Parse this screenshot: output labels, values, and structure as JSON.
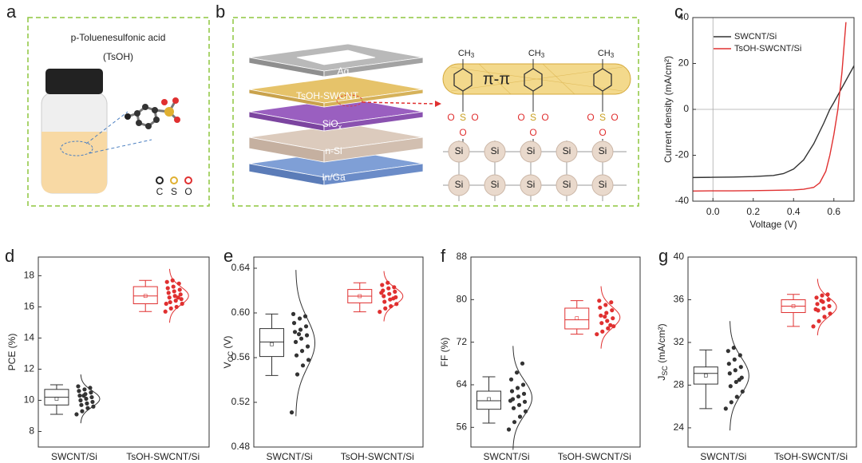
{
  "panel_labels": [
    "a",
    "b",
    "c",
    "d",
    "e",
    "f",
    "g"
  ],
  "diagram_a": {
    "title": "p-Toluenesulfonic acid",
    "subtitle": "(TsOH)",
    "legend": [
      "C",
      "S",
      "O"
    ]
  },
  "diagram_b": {
    "layers": [
      "Ag",
      "TsOH-SWCNT",
      {
        "text": "SiO",
        "sub": "x"
      },
      "n-Si",
      "In/Ga"
    ],
    "interaction": "π-π",
    "methyl": [
      {
        "text": "CH",
        "sub": "3"
      },
      {
        "text": "CH",
        "sub": "3"
      },
      {
        "text": "CH",
        "sub": "3"
      }
    ],
    "sulfonyl": [
      {
        "S": "S",
        "O": [
          "O",
          "O",
          "O"
        ]
      },
      {
        "S": "S",
        "O": [
          "O",
          "O",
          "O"
        ]
      },
      {
        "S": "S",
        "O": [
          "O",
          "O",
          "O"
        ]
      }
    ],
    "si_atoms": [
      "Si",
      "Si",
      "Si",
      "Si",
      "Si",
      "Si",
      "Si",
      "Si",
      "Si",
      "Si"
    ]
  },
  "chart_data": [
    {
      "type": "line",
      "x_label": "Voltage (V)",
      "y_label": "Current density (mA/cm²)",
      "xlim": [
        -0.1,
        0.7
      ],
      "ylim": [
        -40,
        40
      ],
      "xticks": [
        {
          "value": 0,
          "label": "0.0"
        },
        {
          "value": 0.2,
          "label": "0.2"
        },
        {
          "value": 0.4,
          "label": "0.4"
        },
        {
          "value": 0.6,
          "label": "0.6"
        }
      ],
      "yticks": [
        -40,
        -20,
        0,
        20,
        40
      ],
      "zero_lines": true,
      "legend": "upper left",
      "series": [
        {
          "name": "SWCNT/Si",
          "color": "#333333",
          "x": [
            -0.1,
            0,
            0.1,
            0.2,
            0.3,
            0.35,
            0.4,
            0.45,
            0.5,
            0.55,
            0.58,
            0.6,
            0.65,
            0.7
          ],
          "values": [
            -29.7,
            -29.6,
            -29.5,
            -29.3,
            -28.8,
            -28,
            -26,
            -22,
            -15,
            -6,
            0,
            3,
            11,
            19
          ]
        },
        {
          "name": "TsOH-SWCNT/Si",
          "color": "#e03030",
          "x": [
            -0.1,
            0,
            0.1,
            0.2,
            0.3,
            0.4,
            0.45,
            0.5,
            0.53,
            0.56,
            0.58,
            0.6,
            0.62,
            0.64,
            0.66
          ],
          "values": [
            -35.6,
            -35.5,
            -35.5,
            -35.4,
            -35.3,
            -35.1,
            -34.8,
            -34,
            -32,
            -27,
            -20,
            -11,
            0,
            16,
            38
          ]
        }
      ]
    },
    {
      "type": "box",
      "y_label": "PCE (%)",
      "categories": [
        "SWCNT/Si",
        "TsOH-SWCNT/Si"
      ],
      "ylim": [
        7,
        19.2
      ],
      "yticks": [
        8,
        10,
        12,
        14,
        16,
        18
      ],
      "series": [
        {
          "color": "#333333",
          "box": {
            "min": 9.1,
            "q1": 9.7,
            "median": 10.2,
            "q3": 10.7,
            "max": 11.0,
            "mean": 10.1
          },
          "points": [
            9.1,
            9.3,
            9.5,
            9.6,
            9.7,
            9.8,
            9.9,
            10.0,
            10.1,
            10.2,
            10.3,
            10.4,
            10.5,
            10.6,
            10.7,
            10.8,
            10.9,
            10.3
          ]
        },
        {
          "color": "#e03030",
          "box": {
            "min": 15.7,
            "q1": 16.2,
            "median": 16.7,
            "q3": 17.3,
            "max": 17.7,
            "mean": 16.7
          },
          "points": [
            15.7,
            15.9,
            16.0,
            16.2,
            16.3,
            16.4,
            16.5,
            16.6,
            16.7,
            16.8,
            16.9,
            17.0,
            17.1,
            17.2,
            17.3,
            17.5,
            17.6,
            17.7,
            16.6,
            16.2
          ]
        }
      ]
    },
    {
      "type": "box",
      "y_label": {
        "text": "V",
        "sub": "OC",
        "rest": " (V)"
      },
      "categories": [
        "SWCNT/Si",
        "TsOH-SWCNT/Si"
      ],
      "ylim": [
        0.48,
        0.65
      ],
      "yticks": [
        0.48,
        0.52,
        0.56,
        {
          "value": 0.6,
          "label": "0.60"
        },
        0.64
      ],
      "series": [
        {
          "color": "#333333",
          "box": {
            "min": 0.544,
            "q1": 0.561,
            "median": 0.574,
            "q3": 0.586,
            "max": 0.599,
            "mean": 0.572
          },
          "points": [
            0.511,
            0.545,
            0.553,
            0.558,
            0.562,
            0.566,
            0.57,
            0.574,
            0.577,
            0.58,
            0.583,
            0.585,
            0.588,
            0.591,
            0.595,
            0.597,
            0.599,
            0.581
          ]
        },
        {
          "color": "#e03030",
          "box": {
            "min": 0.601,
            "q1": 0.609,
            "median": 0.615,
            "q3": 0.621,
            "max": 0.627,
            "mean": 0.615
          },
          "points": [
            0.601,
            0.604,
            0.606,
            0.608,
            0.61,
            0.612,
            0.614,
            0.615,
            0.617,
            0.619,
            0.62,
            0.622,
            0.623,
            0.625,
            0.627,
            0.613,
            0.618
          ]
        }
      ]
    },
    {
      "type": "box",
      "y_label": "FF (%)",
      "categories": [
        "SWCNT/Si",
        "TsOH-SWCNT/Si"
      ],
      "ylim": [
        52.3,
        88
      ],
      "yticks": [
        56,
        64,
        72,
        80,
        88
      ],
      "series": [
        {
          "color": "#333333",
          "box": {
            "min": 56.8,
            "q1": 59.4,
            "median": 61,
            "q3": 62.8,
            "max": 65.5,
            "mean": 61.3
          },
          "points": [
            55.6,
            57.0,
            58.0,
            59.0,
            59.6,
            60.2,
            60.8,
            61.3,
            61.8,
            62.3,
            62.8,
            63.4,
            64.0,
            65.0,
            66.3,
            68.0,
            61.0
          ]
        },
        {
          "color": "#e03030",
          "box": {
            "min": 73.5,
            "q1": 74.5,
            "median": 76.2,
            "q3": 78.4,
            "max": 79.8,
            "mean": 76.5
          },
          "points": [
            73.5,
            74.0,
            74.6,
            75.0,
            75.6,
            76.0,
            76.5,
            77.0,
            77.5,
            78.0,
            78.5,
            79.0,
            79.5,
            79.8,
            76.8,
            75.2
          ]
        }
      ]
    },
    {
      "type": "box",
      "y_label": {
        "text": "J",
        "sub": "SC",
        "rest": " (mA/cm²)"
      },
      "categories": [
        "SWCNT/Si",
        "TsOH-SWCNT/Si"
      ],
      "ylim": [
        22.2,
        40
      ],
      "yticks": [
        24,
        28,
        32,
        36,
        40
      ],
      "series": [
        {
          "color": "#333333",
          "box": {
            "min": 25.8,
            "q1": 28.1,
            "median": 29.1,
            "q3": 29.7,
            "max": 31.3,
            "mean": 28.9
          },
          "points": [
            25.8,
            26.4,
            26.9,
            27.4,
            27.9,
            28.3,
            28.7,
            29.1,
            29.4,
            29.7,
            30.0,
            30.4,
            30.8,
            31.2,
            31.5,
            28.5
          ]
        },
        {
          "color": "#e03030",
          "box": {
            "min": 33.5,
            "q1": 34.8,
            "median": 35.4,
            "q3": 36.0,
            "max": 36.5,
            "mean": 35.4
          },
          "points": [
            33.5,
            34.0,
            34.4,
            34.7,
            35.0,
            35.2,
            35.4,
            35.6,
            35.8,
            36.0,
            36.2,
            36.4,
            36.5,
            35.1,
            35.9
          ]
        }
      ]
    }
  ]
}
